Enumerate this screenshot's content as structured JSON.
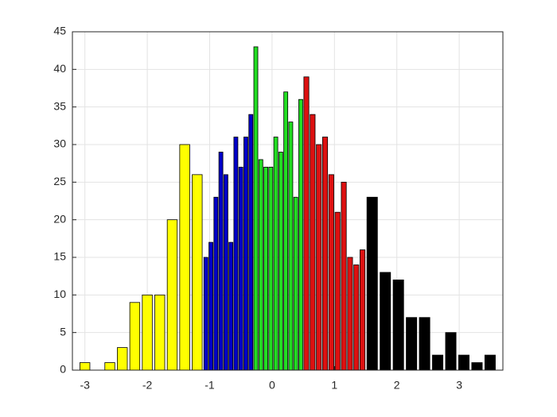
{
  "chart_data": {
    "type": "histogram",
    "xlim": [
      -3.2,
      3.7
    ],
    "xticks": [
      -3,
      -2,
      -1,
      0,
      1,
      2,
      3
    ],
    "ylim": [
      0,
      45
    ],
    "yticks": [
      0,
      5,
      10,
      15,
      20,
      25,
      30,
      35,
      40,
      45
    ],
    "grid": true,
    "series": [
      {
        "color": "#ffff00",
        "bins": [
          -3.1,
          -2.9,
          -2.7,
          -2.5,
          -2.3,
          -2.1,
          -1.9,
          -1.7,
          -1.5,
          -1.3,
          -1.1
        ],
        "values": [
          1,
          0,
          1,
          3,
          9,
          10,
          10,
          20,
          30,
          26
        ]
      },
      {
        "color": "#0000c8",
        "bins": [
          -1.1,
          -1.02,
          -0.94,
          -0.86,
          -0.78,
          -0.7,
          -0.62,
          -0.54,
          -0.46,
          -0.38,
          -0.3
        ],
        "values": [
          15,
          17,
          23,
          29,
          26,
          17,
          31,
          27,
          31,
          34
        ]
      },
      {
        "color": "#22dd22",
        "bins": [
          -0.3,
          -0.22,
          -0.14,
          -0.06,
          0.02,
          0.1,
          0.18,
          0.26,
          0.34,
          0.42,
          0.5
        ],
        "values": [
          43,
          28,
          27,
          27,
          31,
          29,
          37,
          33,
          23,
          36
        ]
      },
      {
        "color": "#dd1111",
        "bins": [
          0.5,
          0.6,
          0.7,
          0.8,
          0.9,
          1.0,
          1.1,
          1.2,
          1.3,
          1.4,
          1.5
        ],
        "values": [
          39,
          34,
          30,
          31,
          26,
          21,
          25,
          15,
          14,
          16
        ]
      },
      {
        "color": "#000000",
        "bins": [
          1.5,
          1.71,
          1.92,
          2.13,
          2.34,
          2.55,
          2.76,
          2.97,
          3.18,
          3.39,
          3.6
        ],
        "values": [
          23,
          13,
          12,
          7,
          7,
          2,
          5,
          2,
          1,
          2
        ]
      }
    ]
  }
}
